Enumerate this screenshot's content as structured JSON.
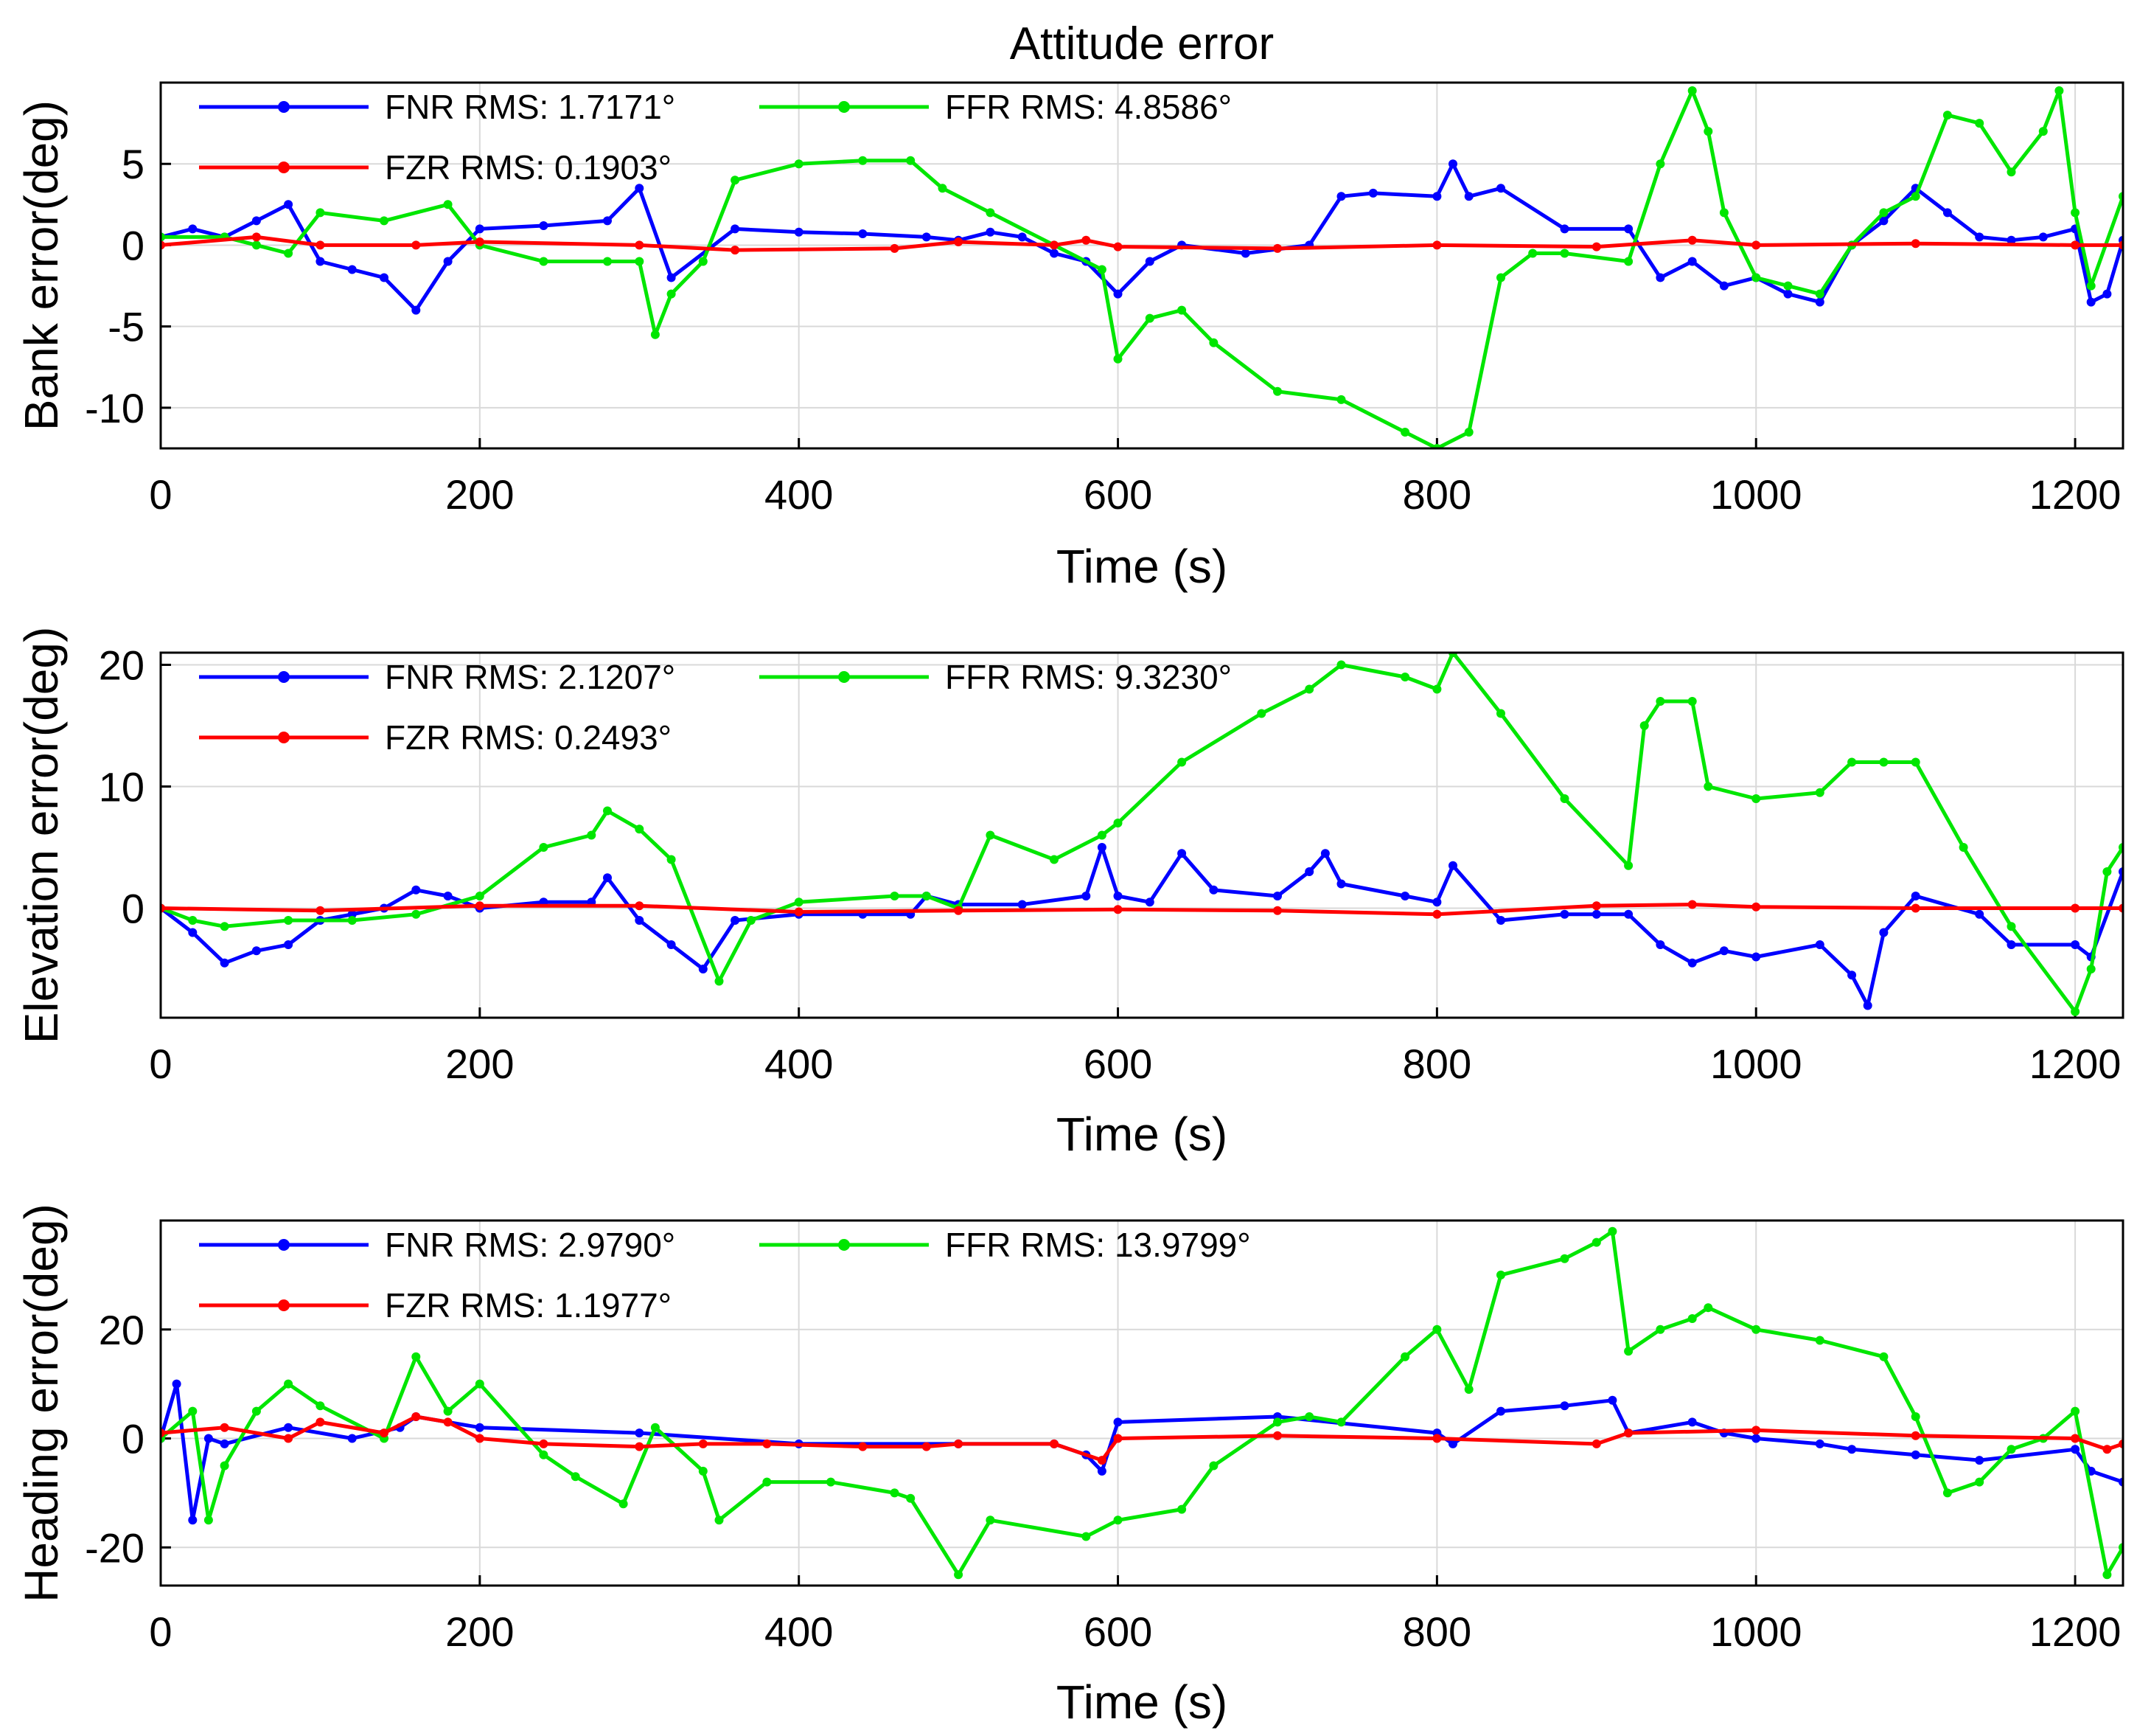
{
  "title": "Attitude error",
  "chart_data": [
    {
      "type": "line",
      "xlabel": "Time (s)",
      "ylabel": "Bank error(deg)",
      "xlim": [
        0,
        1230
      ],
      "ylim": [
        -12.5,
        10
      ],
      "xticks": [
        0,
        200,
        400,
        600,
        800,
        1000,
        1200
      ],
      "yticks": [
        -10,
        -5,
        0,
        5
      ],
      "grid": true,
      "legend_position": "top-left",
      "series": [
        {
          "name": "FNR",
          "legend_label": "FNR RMS: 1.7171°",
          "color": "#0000ff",
          "x": [
            0,
            20,
            40,
            60,
            80,
            100,
            120,
            140,
            160,
            180,
            200,
            240,
            280,
            300,
            320,
            360,
            400,
            440,
            480,
            500,
            520,
            540,
            560,
            580,
            600,
            620,
            640,
            680,
            720,
            740,
            760,
            800,
            810,
            820,
            840,
            880,
            920,
            940,
            960,
            980,
            1000,
            1020,
            1040,
            1060,
            1080,
            1100,
            1120,
            1140,
            1160,
            1180,
            1200,
            1210,
            1220,
            1230
          ],
          "y": [
            0.5,
            1,
            0.5,
            1.5,
            2.5,
            -1,
            -1.5,
            -2,
            -4,
            -1,
            1,
            1.2,
            1.5,
            3.5,
            -2,
            1,
            0.8,
            0.7,
            0.5,
            0.3,
            0.8,
            0.5,
            -0.5,
            -1,
            -3,
            -1,
            0,
            -0.5,
            0,
            3,
            3.2,
            3,
            5,
            3,
            3.5,
            1,
            1,
            -2,
            -1,
            -2.5,
            -2,
            -3,
            -3.5,
            0,
            1.5,
            3.5,
            2,
            0.5,
            0.3,
            0.5,
            1,
            -3.5,
            -3,
            0.3
          ]
        },
        {
          "name": "FFR",
          "legend_label": "FFR RMS: 4.8586°",
          "color": "#00e600",
          "x": [
            0,
            40,
            60,
            80,
            100,
            140,
            180,
            200,
            240,
            280,
            300,
            310,
            320,
            340,
            360,
            400,
            440,
            470,
            490,
            520,
            560,
            590,
            600,
            620,
            640,
            660,
            700,
            740,
            780,
            800,
            820,
            840,
            860,
            880,
            920,
            940,
            960,
            970,
            980,
            1000,
            1020,
            1040,
            1060,
            1080,
            1100,
            1120,
            1140,
            1160,
            1180,
            1190,
            1200,
            1210,
            1230
          ],
          "y": [
            0.5,
            0.5,
            0,
            -0.5,
            2,
            1.5,
            2.5,
            0,
            -1,
            -1,
            -1,
            -5.5,
            -3,
            -1,
            4,
            5,
            5.2,
            5.2,
            3.5,
            2,
            0,
            -1.5,
            -7,
            -4.5,
            -4,
            -6,
            -9,
            -9.5,
            -11.5,
            -12.5,
            -11.5,
            -2,
            -0.5,
            -0.5,
            -1,
            5,
            9.5,
            7,
            2,
            -2,
            -2.5,
            -3,
            0,
            2,
            3,
            8,
            7.5,
            4.5,
            7,
            9.5,
            2,
            -2.5,
            3
          ]
        },
        {
          "name": "FZR",
          "legend_label": "FZR RMS: 0.1903°",
          "color": "#ff0000",
          "x": [
            0,
            60,
            100,
            160,
            200,
            300,
            360,
            460,
            500,
            560,
            580,
            600,
            700,
            800,
            900,
            960,
            1000,
            1100,
            1200,
            1230
          ],
          "y": [
            0,
            0.5,
            0,
            0,
            0.2,
            0,
            -0.3,
            -0.2,
            0.2,
            0,
            0.3,
            -0.1,
            -0.2,
            0,
            -0.1,
            0.3,
            0,
            0.1,
            0,
            0
          ]
        }
      ]
    },
    {
      "type": "line",
      "xlabel": "Time (s)",
      "ylabel": "Elevation error(deg)",
      "xlim": [
        0,
        1230
      ],
      "ylim": [
        -9,
        21
      ],
      "xticks": [
        0,
        200,
        400,
        600,
        800,
        1000,
        1200
      ],
      "yticks": [
        0,
        10,
        20
      ],
      "grid": true,
      "legend_position": "top-left",
      "series": [
        {
          "name": "FNR",
          "legend_label": "FNR RMS: 2.1207°",
          "color": "#0000ff",
          "x": [
            0,
            20,
            40,
            60,
            80,
            100,
            120,
            140,
            160,
            180,
            200,
            240,
            270,
            280,
            300,
            320,
            340,
            360,
            400,
            440,
            470,
            480,
            500,
            540,
            580,
            590,
            600,
            620,
            640,
            660,
            700,
            720,
            730,
            740,
            780,
            800,
            810,
            840,
            880,
            900,
            920,
            940,
            960,
            980,
            1000,
            1040,
            1060,
            1070,
            1080,
            1100,
            1140,
            1160,
            1200,
            1210,
            1230
          ],
          "y": [
            0,
            -2,
            -4.5,
            -3.5,
            -3,
            -1,
            -0.5,
            0,
            1.5,
            1,
            0,
            0.5,
            0.5,
            2.5,
            -1,
            -3,
            -5,
            -1,
            -0.5,
            -0.5,
            -0.5,
            1,
            0.3,
            0.3,
            1,
            5,
            1,
            0.5,
            4.5,
            1.5,
            1,
            3,
            4.5,
            2,
            1,
            0.5,
            3.5,
            -1,
            -0.5,
            -0.5,
            -0.5,
            -3,
            -4.5,
            -3.5,
            -4,
            -3,
            -5.5,
            -8,
            -2,
            1,
            -0.5,
            -3,
            -3,
            -4,
            3
          ]
        },
        {
          "name": "FFR",
          "legend_label": "FFR RMS: 9.3230°",
          "color": "#00e600",
          "x": [
            0,
            20,
            40,
            80,
            120,
            160,
            200,
            240,
            270,
            280,
            300,
            320,
            350,
            370,
            400,
            460,
            480,
            500,
            520,
            560,
            590,
            600,
            640,
            690,
            720,
            740,
            780,
            800,
            810,
            840,
            880,
            920,
            930,
            940,
            960,
            970,
            1000,
            1040,
            1060,
            1080,
            1100,
            1130,
            1160,
            1200,
            1210,
            1220,
            1230
          ],
          "y": [
            0,
            -1,
            -1.5,
            -1,
            -1,
            -0.5,
            1,
            5,
            6,
            8,
            6.5,
            4,
            -6,
            -1,
            0.5,
            1,
            1,
            0,
            6,
            4,
            6,
            7,
            12,
            16,
            18,
            20,
            19,
            18,
            21,
            16,
            9,
            3.5,
            15,
            17,
            17,
            10,
            9,
            9.5,
            12,
            12,
            12,
            5,
            -1.5,
            -8.5,
            -5,
            3,
            5
          ]
        },
        {
          "name": "FZR",
          "legend_label": "FZR RMS: 0.2493°",
          "color": "#ff0000",
          "x": [
            0,
            100,
            200,
            300,
            400,
            500,
            600,
            700,
            800,
            900,
            960,
            1000,
            1100,
            1200,
            1230
          ],
          "y": [
            0,
            -0.2,
            0.2,
            0.2,
            -0.3,
            -0.2,
            -0.1,
            -0.2,
            -0.5,
            0.2,
            0.3,
            0.1,
            0,
            0,
            0
          ]
        }
      ]
    },
    {
      "type": "line",
      "xlabel": "Time (s)",
      "ylabel": "Heading error(deg)",
      "xlim": [
        0,
        1230
      ],
      "ylim": [
        -27,
        40
      ],
      "xticks": [
        0,
        200,
        400,
        600,
        800,
        1000,
        1200
      ],
      "yticks": [
        -20,
        0,
        20
      ],
      "grid": true,
      "legend_position": "top-left",
      "series": [
        {
          "name": "FNR",
          "legend_label": "FNR RMS: 2.9790°",
          "color": "#0000ff",
          "x": [
            0,
            10,
            20,
            30,
            40,
            80,
            120,
            150,
            160,
            200,
            300,
            400,
            500,
            560,
            580,
            590,
            600,
            700,
            800,
            810,
            840,
            880,
            910,
            920,
            960,
            980,
            1000,
            1040,
            1060,
            1100,
            1140,
            1200,
            1210,
            1230
          ],
          "y": [
            0,
            10,
            -15,
            0,
            -1,
            2,
            0,
            2,
            4,
            2,
            1,
            -1,
            -1,
            -1,
            -3,
            -6,
            3,
            4,
            1,
            -1,
            5,
            6,
            7,
            1,
            3,
            1,
            0,
            -1,
            -2,
            -3,
            -4,
            -2,
            -6,
            -8
          ]
        },
        {
          "name": "FFR",
          "legend_label": "FFR RMS: 13.9799°",
          "color": "#00e600",
          "x": [
            0,
            20,
            30,
            40,
            60,
            80,
            100,
            140,
            160,
            180,
            200,
            240,
            260,
            290,
            310,
            340,
            350,
            380,
            420,
            460,
            470,
            500,
            520,
            580,
            600,
            640,
            660,
            700,
            720,
            740,
            780,
            800,
            820,
            840,
            880,
            900,
            910,
            920,
            940,
            960,
            970,
            1000,
            1040,
            1080,
            1100,
            1120,
            1140,
            1160,
            1180,
            1200,
            1220,
            1230
          ],
          "y": [
            0,
            5,
            -15,
            -5,
            5,
            10,
            6,
            0,
            15,
            5,
            10,
            -3,
            -7,
            -12,
            2,
            -6,
            -15,
            -8,
            -8,
            -10,
            -11,
            -25,
            -15,
            -18,
            -15,
            -13,
            -5,
            3,
            4,
            3,
            15,
            20,
            9,
            30,
            33,
            36,
            38,
            16,
            20,
            22,
            24,
            20,
            18,
            15,
            4,
            -10,
            -8,
            -2,
            0,
            5,
            -25,
            -20
          ]
        },
        {
          "name": "FZR",
          "legend_label": "FZR RMS: 1.1977°",
          "color": "#ff0000",
          "x": [
            0,
            40,
            80,
            100,
            140,
            160,
            180,
            200,
            240,
            300,
            340,
            380,
            440,
            480,
            500,
            560,
            590,
            600,
            700,
            800,
            900,
            920,
            1000,
            1100,
            1200,
            1220,
            1230
          ],
          "y": [
            1,
            2,
            0,
            3,
            1,
            4,
            3,
            0,
            -1,
            -1.5,
            -1,
            -1,
            -1.5,
            -1.5,
            -1,
            -1,
            -4,
            0,
            0.5,
            0,
            -1,
            1,
            1.5,
            0.5,
            0,
            -2,
            -1
          ]
        }
      ]
    }
  ]
}
